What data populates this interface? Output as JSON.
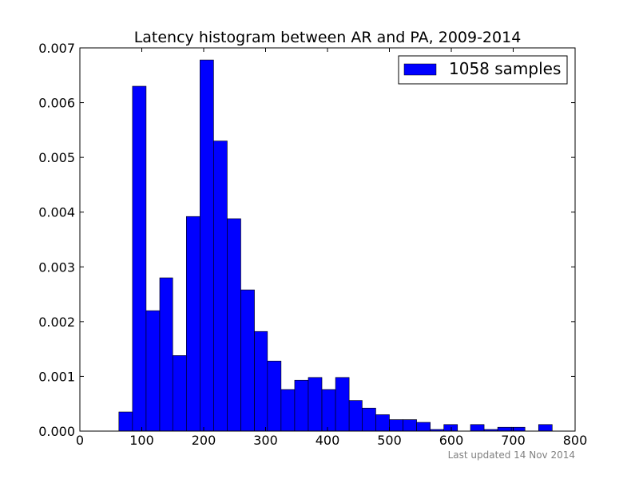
{
  "chart_data": {
    "type": "bar",
    "title": "Latency histogram between AR and PA, 2009-2014",
    "xlabel": "",
    "ylabel": "",
    "xlim": [
      0,
      800
    ],
    "ylim": [
      0,
      0.007
    ],
    "x_ticks": [
      0,
      100,
      200,
      300,
      400,
      500,
      600,
      700,
      800
    ],
    "y_ticks": [
      "0.000",
      "0.001",
      "0.002",
      "0.003",
      "0.004",
      "0.005",
      "0.006",
      "0.007"
    ],
    "grid": false,
    "legend_position": "top-right",
    "series": [
      {
        "name": "1058 samples",
        "color": "#0000ff",
        "bins": [
          {
            "x0": 63,
            "x1": 85,
            "value": 0.00035
          },
          {
            "x0": 85,
            "x1": 107,
            "value": 0.0063
          },
          {
            "x0": 107,
            "x1": 129,
            "value": 0.0022
          },
          {
            "x0": 129,
            "x1": 150,
            "value": 0.0028
          },
          {
            "x0": 150,
            "x1": 172,
            "value": 0.00138
          },
          {
            "x0": 172,
            "x1": 194,
            "value": 0.00392
          },
          {
            "x0": 194,
            "x1": 216,
            "value": 0.00678
          },
          {
            "x0": 216,
            "x1": 238,
            "value": 0.0053
          },
          {
            "x0": 238,
            "x1": 260,
            "value": 0.00388
          },
          {
            "x0": 260,
            "x1": 282,
            "value": 0.00258
          },
          {
            "x0": 282,
            "x1": 303,
            "value": 0.00182
          },
          {
            "x0": 303,
            "x1": 325,
            "value": 0.00128
          },
          {
            "x0": 325,
            "x1": 347,
            "value": 0.00076
          },
          {
            "x0": 347,
            "x1": 369,
            "value": 0.00093
          },
          {
            "x0": 369,
            "x1": 391,
            "value": 0.00098
          },
          {
            "x0": 391,
            "x1": 413,
            "value": 0.00076
          },
          {
            "x0": 413,
            "x1": 435,
            "value": 0.00098
          },
          {
            "x0": 435,
            "x1": 456,
            "value": 0.00056
          },
          {
            "x0": 456,
            "x1": 478,
            "value": 0.00042
          },
          {
            "x0": 478,
            "x1": 500,
            "value": 0.0003
          },
          {
            "x0": 500,
            "x1": 522,
            "value": 0.00021
          },
          {
            "x0": 522,
            "x1": 544,
            "value": 0.00021
          },
          {
            "x0": 544,
            "x1": 566,
            "value": 0.00016
          },
          {
            "x0": 566,
            "x1": 588,
            "value": 3e-05
          },
          {
            "x0": 588,
            "x1": 610,
            "value": 0.00012
          },
          {
            "x0": 610,
            "x1": 631,
            "value": 0.0
          },
          {
            "x0": 631,
            "x1": 653,
            "value": 0.00012
          },
          {
            "x0": 653,
            "x1": 675,
            "value": 3e-05
          },
          {
            "x0": 675,
            "x1": 697,
            "value": 7e-05
          },
          {
            "x0": 697,
            "x1": 719,
            "value": 7e-05
          },
          {
            "x0": 719,
            "x1": 741,
            "value": 0.0
          },
          {
            "x0": 741,
            "x1": 763,
            "value": 0.00012
          }
        ]
      }
    ],
    "footnote": "Last updated 14 Nov 2014"
  }
}
